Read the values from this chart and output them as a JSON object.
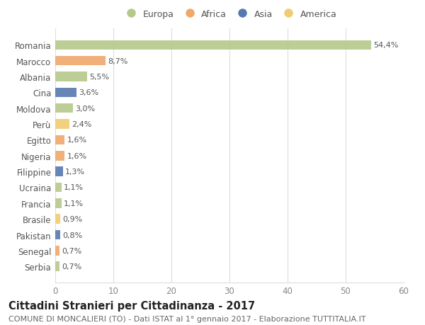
{
  "countries": [
    "Romania",
    "Marocco",
    "Albania",
    "Cina",
    "Moldova",
    "Perù",
    "Egitto",
    "Nigeria",
    "Filippine",
    "Ucraina",
    "Francia",
    "Brasile",
    "Pakistan",
    "Senegal",
    "Serbia"
  ],
  "values": [
    54.4,
    8.7,
    5.5,
    3.6,
    3.0,
    2.4,
    1.6,
    1.6,
    1.3,
    1.1,
    1.1,
    0.9,
    0.8,
    0.7,
    0.7
  ],
  "labels": [
    "54,4%",
    "8,7%",
    "5,5%",
    "3,6%",
    "3,0%",
    "2,4%",
    "1,6%",
    "1,6%",
    "1,3%",
    "1,1%",
    "1,1%",
    "0,9%",
    "0,8%",
    "0,7%",
    "0,7%"
  ],
  "continents": [
    "Europa",
    "Africa",
    "Europa",
    "Asia",
    "Europa",
    "America",
    "Africa",
    "Africa",
    "Asia",
    "Europa",
    "Europa",
    "America",
    "Asia",
    "Africa",
    "Europa"
  ],
  "colors": {
    "Europa": "#b5c98a",
    "Africa": "#f0a86a",
    "Asia": "#5878b0",
    "America": "#f0cc70"
  },
  "legend_order": [
    "Europa",
    "Africa",
    "Asia",
    "America"
  ],
  "xlim": [
    0,
    60
  ],
  "xticks": [
    0,
    10,
    20,
    30,
    40,
    50,
    60
  ],
  "title": "Cittadini Stranieri per Cittadinanza - 2017",
  "subtitle": "COMUNE DI MONCALIERI (TO) - Dati ISTAT al 1° gennaio 2017 - Elaborazione TUTTITALIA.IT",
  "background_color": "#ffffff",
  "grid_color": "#dddddd",
  "bar_height": 0.6,
  "title_fontsize": 10.5,
  "subtitle_fontsize": 8,
  "label_fontsize": 8,
  "ytick_fontsize": 8.5,
  "xtick_fontsize": 8.5,
  "legend_fontsize": 9
}
